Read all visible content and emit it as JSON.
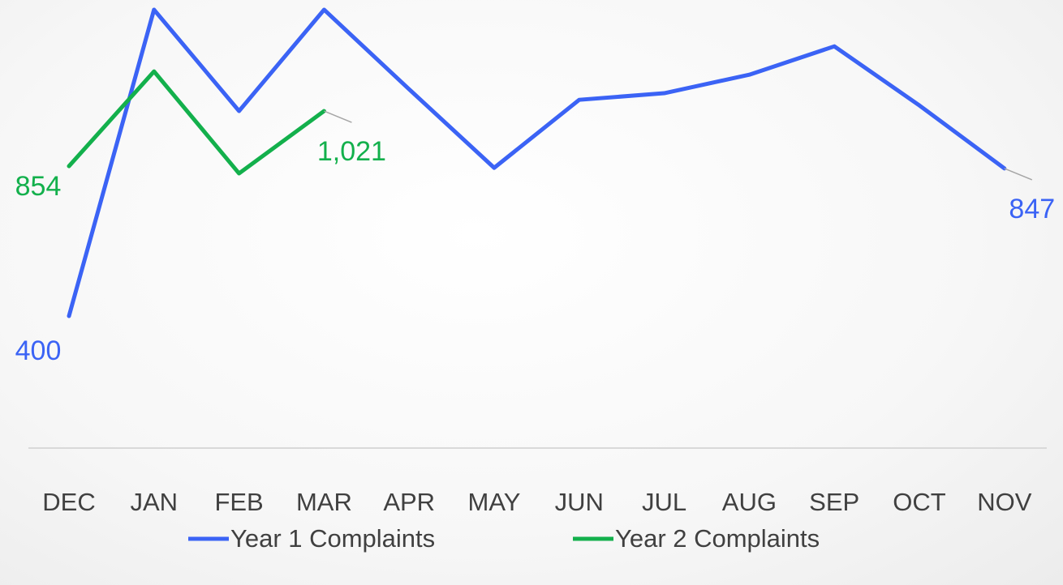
{
  "chart_data": {
    "type": "line",
    "categories": [
      "DEC",
      "JAN",
      "FEB",
      "MAR",
      "APR",
      "MAY",
      "JUN",
      "JUL",
      "AUG",
      "SEP",
      "OCT",
      "NOV"
    ],
    "series": [
      {
        "name": "Year 1 Complaints",
        "color": "#3b63f5",
        "values": [
          400,
          1328,
          1021,
          1328,
          1087,
          849,
          1055,
          1075,
          1131,
          1217,
          1038,
          847
        ],
        "value_labels": [
          "400",
          null,
          null,
          null,
          null,
          null,
          null,
          null,
          null,
          null,
          null,
          "847"
        ]
      },
      {
        "name": "Year 2 Complaints",
        "color": "#13b04c",
        "values": [
          854,
          1141,
          832,
          1021,
          null,
          null,
          null,
          null,
          null,
          null,
          null,
          null
        ],
        "value_labels": [
          "854",
          null,
          null,
          "1,021",
          null,
          null,
          null,
          null,
          null,
          null,
          null,
          null
        ]
      }
    ],
    "ylim": [
      0,
      1350
    ]
  }
}
